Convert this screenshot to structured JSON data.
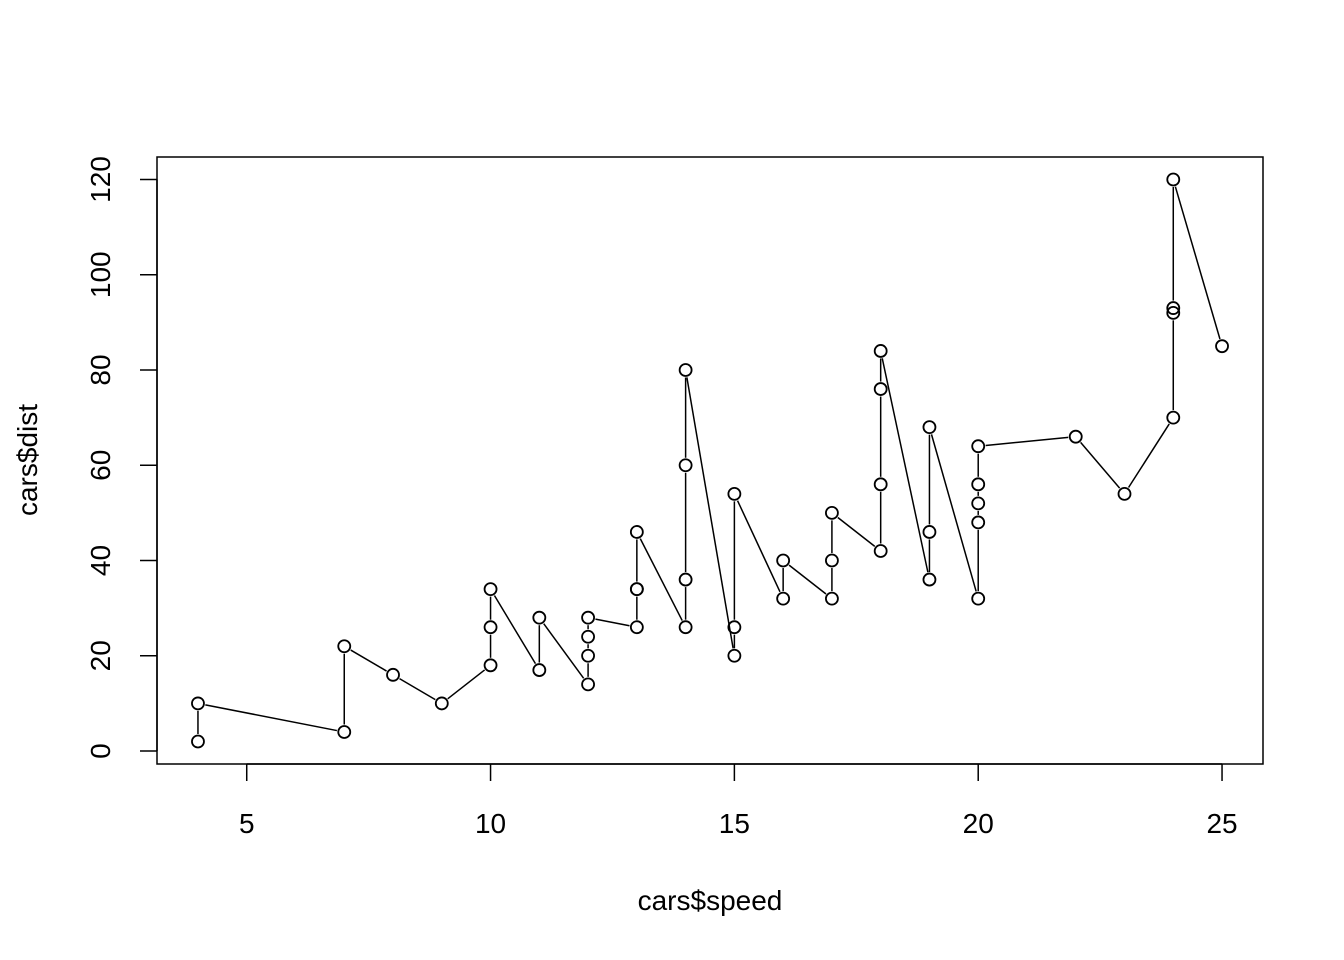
{
  "chart_data": {
    "type": "line",
    "style": "both points and lines",
    "xlabel": "cars$speed",
    "ylabel": "cars$dist",
    "xlim": [
      3.16,
      25.84
    ],
    "ylim": [
      -2.72,
      124.72
    ],
    "xticks": [
      5,
      10,
      15,
      20,
      25
    ],
    "yticks": [
      0,
      20,
      40,
      60,
      80,
      100,
      120
    ],
    "grid": false,
    "legend": "none",
    "line_color": "#000000",
    "point_shape": "open circle",
    "series": [
      {
        "x": [
          4,
          4,
          7,
          7,
          8,
          9,
          10,
          10,
          10,
          11,
          11,
          12,
          12,
          12,
          12,
          13,
          13,
          13,
          13,
          14,
          14,
          14,
          14,
          15,
          15,
          15,
          16,
          16,
          17,
          17,
          17,
          18,
          18,
          18,
          18,
          19,
          19,
          19,
          20,
          20,
          20,
          20,
          20,
          22,
          23,
          24,
          24,
          24,
          24,
          25
        ],
        "y": [
          2,
          10,
          4,
          22,
          16,
          10,
          18,
          26,
          34,
          17,
          28,
          14,
          20,
          24,
          28,
          26,
          34,
          34,
          46,
          26,
          36,
          60,
          80,
          20,
          26,
          54,
          32,
          40,
          32,
          40,
          50,
          42,
          56,
          76,
          84,
          36,
          46,
          68,
          32,
          48,
          52,
          56,
          64,
          66,
          54,
          70,
          92,
          93,
          120,
          85
        ]
      }
    ]
  }
}
